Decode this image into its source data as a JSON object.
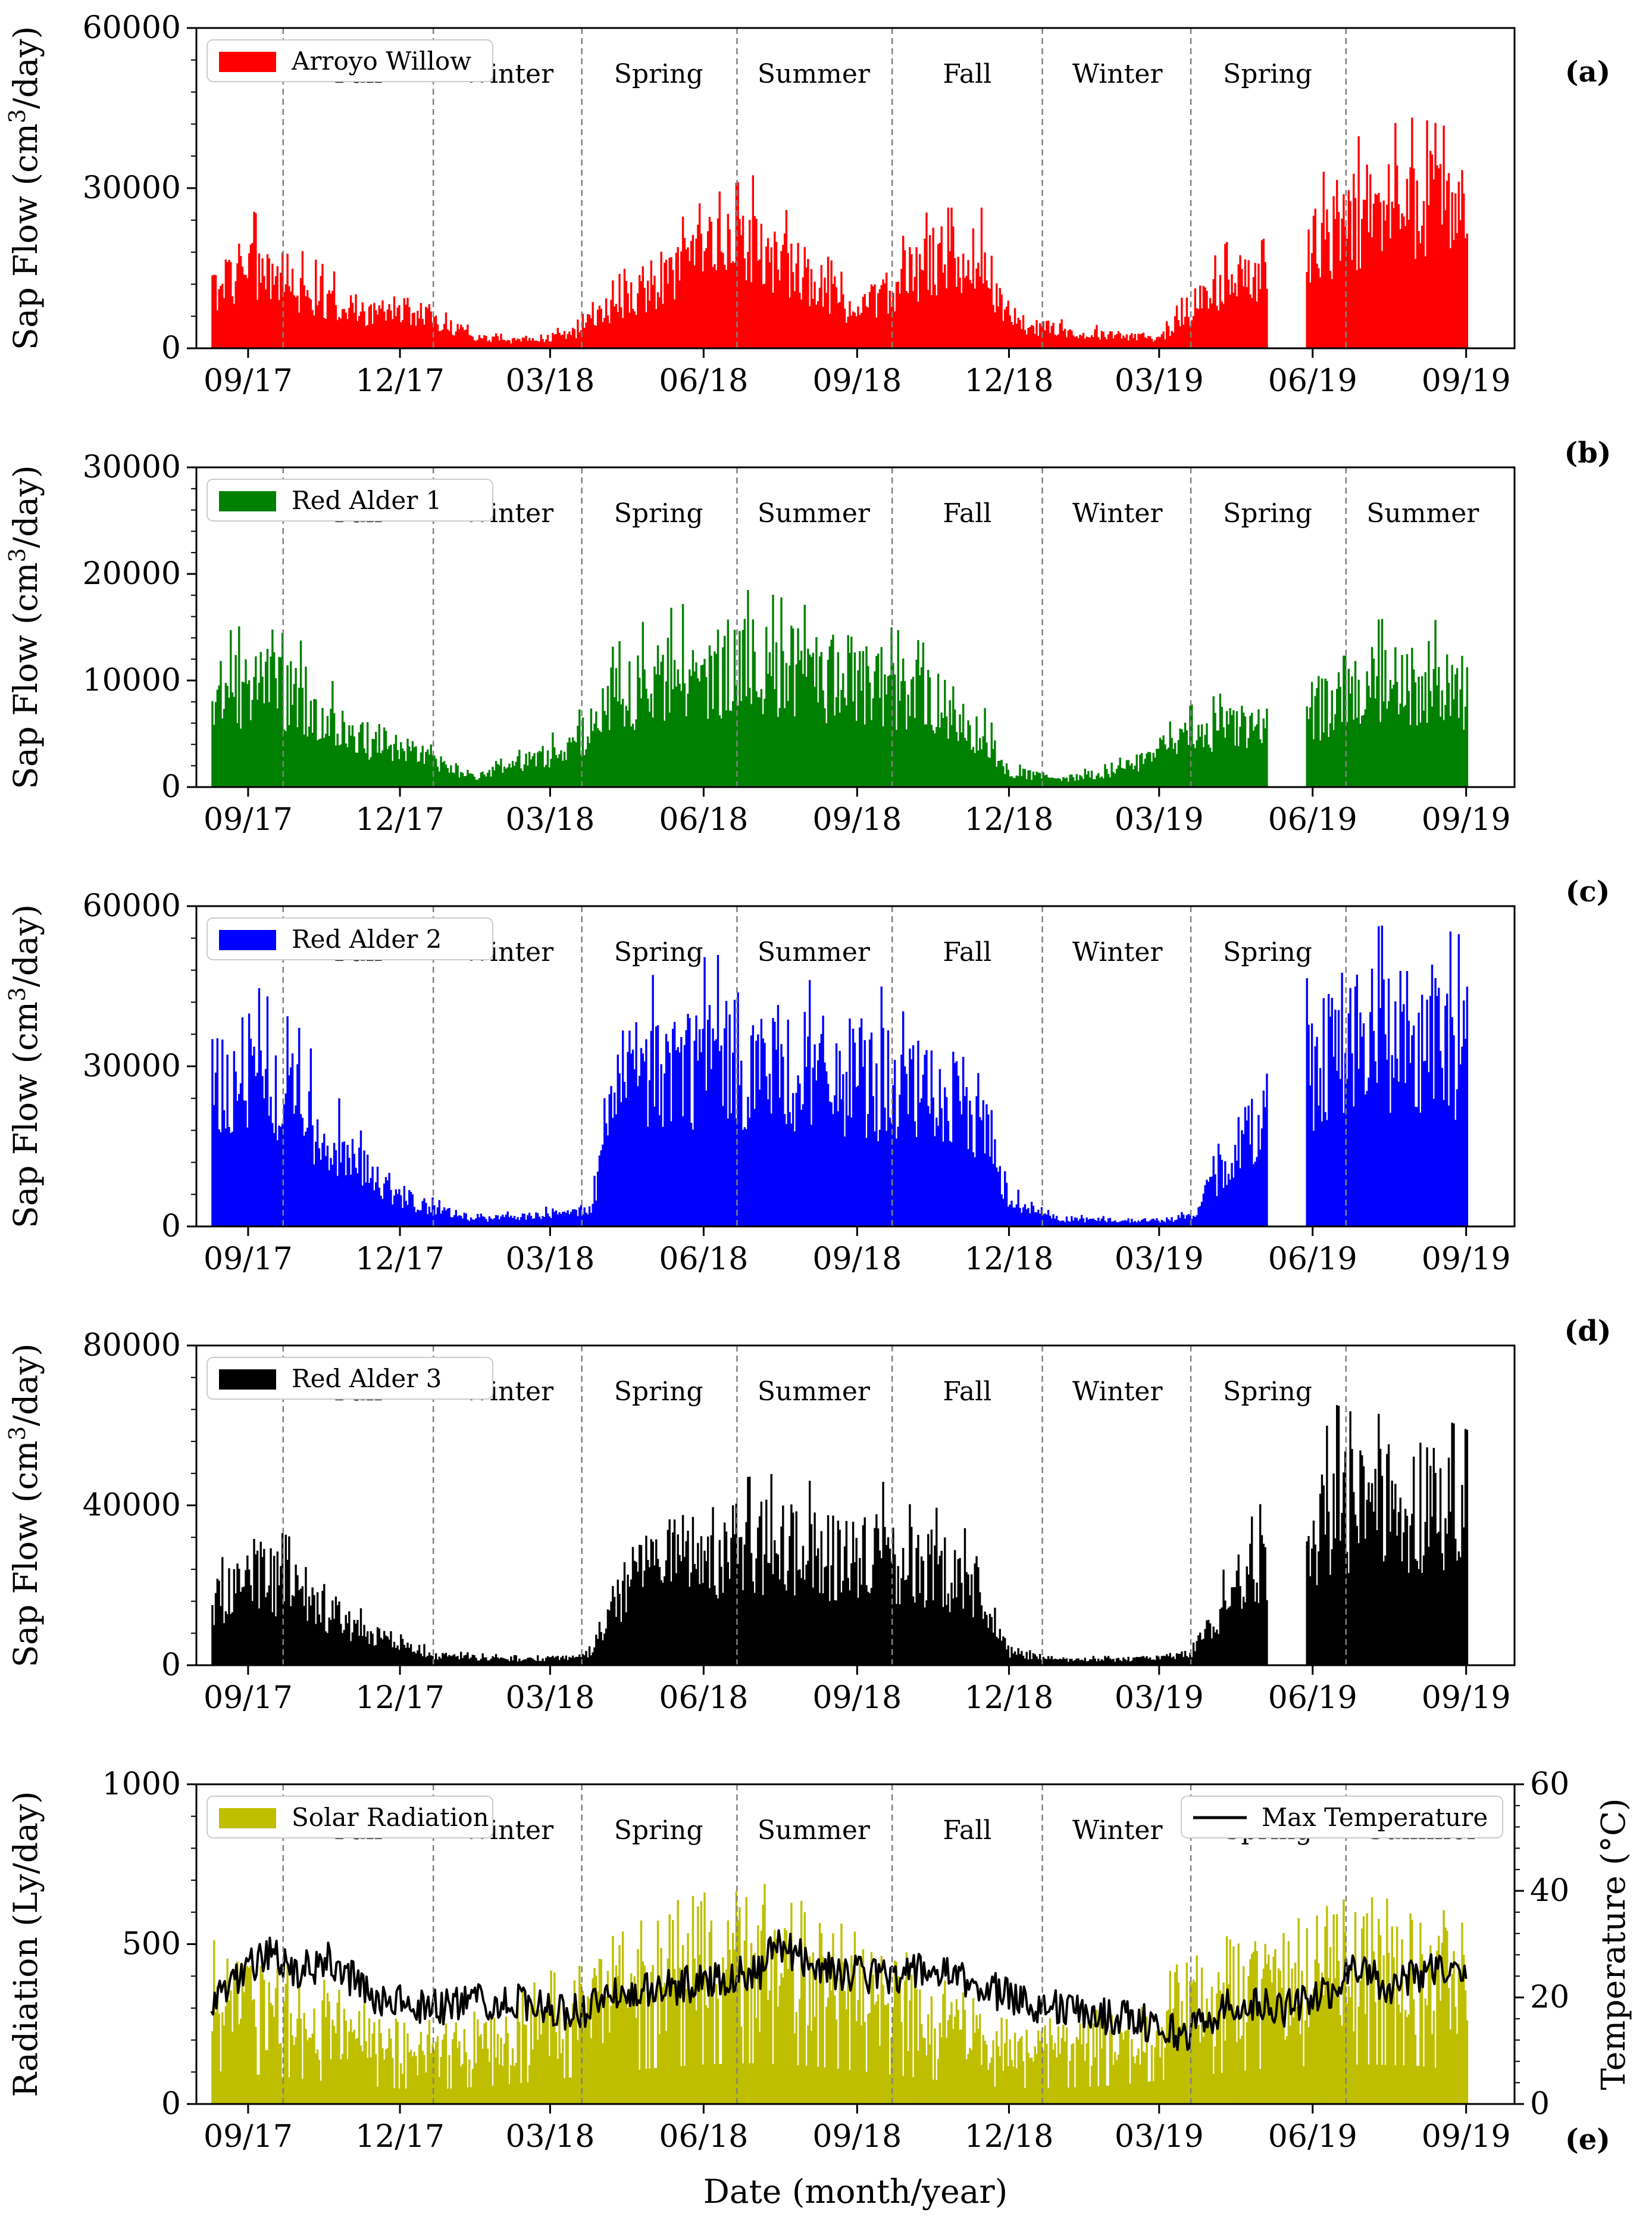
{
  "chart_data": [
    {
      "id": "a",
      "type": "bar",
      "panel_letter": "(a)",
      "legend": "Arroyo Willow",
      "color": "#ff0000",
      "ylabel": "Sap Flow (cm$^3$/day)",
      "ylim": [
        0,
        60000
      ],
      "yticks": [
        "0",
        "30000",
        "60000"
      ],
      "xlim": [
        "2017-08-01",
        "2019-09-30"
      ],
      "xtick_labels": [
        "09/17",
        "12/17",
        "03/18",
        "06/18",
        "09/18",
        "12/18",
        "03/19",
        "06/19",
        "09/19"
      ],
      "seasons": [
        "Fall",
        "Winter",
        "Spring",
        "Summer",
        "Fall",
        "Winter",
        "Spring"
      ],
      "gap": [
        "2019-05-05",
        "2019-05-28"
      ],
      "series": [
        {
          "name": "Arroyo Willow",
          "dates": [
            "2017-08-10",
            "2017-09-01",
            "2017-10-01",
            "2017-11-01",
            "2017-12-01",
            "2017-12-20",
            "2018-01-15",
            "2018-02-15",
            "2018-03-15",
            "2018-04-01",
            "2018-05-01",
            "2018-06-01",
            "2018-06-20",
            "2018-07-01",
            "2018-08-01",
            "2018-09-01",
            "2018-09-25",
            "2018-10-15",
            "2018-11-15",
            "2018-12-01",
            "2019-01-01",
            "2019-02-01",
            "2019-03-01",
            "2019-03-20",
            "2019-04-15",
            "2019-05-05",
            "2019-05-28",
            "2019-06-15",
            "2019-07-01",
            "2019-08-01",
            "2019-09-01"
          ],
          "values": [
            11000,
            17000,
            12000,
            8000,
            6000,
            6500,
            2000,
            1500,
            3000,
            7000,
            13000,
            18000,
            20000,
            21000,
            14000,
            7000,
            13000,
            17000,
            17000,
            5000,
            3500,
            2500,
            2000,
            8000,
            14000,
            16000,
            18000,
            24000,
            26000,
            28000,
            26000
          ]
        }
      ]
    },
    {
      "id": "b",
      "type": "bar",
      "panel_letter": "(b)",
      "legend": "Red Alder 1",
      "color": "#008000",
      "ylabel": "Sap Flow (cm$^3$/day)",
      "ylim": [
        0,
        30000
      ],
      "yticks": [
        "0",
        "10000",
        "20000",
        "30000"
      ],
      "xlim": [
        "2017-08-01",
        "2019-09-30"
      ],
      "xtick_labels": [
        "09/17",
        "12/17",
        "03/18",
        "06/18",
        "09/18",
        "12/18",
        "03/19",
        "06/19",
        "09/19"
      ],
      "seasons": [
        "Fall",
        "Winter",
        "Spring",
        "Summer",
        "Fall",
        "Winter",
        "Spring",
        "Summer"
      ],
      "gap": [
        "2019-05-05",
        "2019-05-28"
      ],
      "series": [
        {
          "name": "Red Alder 1",
          "dates": [
            "2017-08-10",
            "2017-09-01",
            "2017-10-01",
            "2017-11-01",
            "2017-12-01",
            "2017-12-20",
            "2018-01-15",
            "2018-02-15",
            "2018-03-15",
            "2018-04-01",
            "2018-05-01",
            "2018-06-01",
            "2018-07-01",
            "2018-08-01",
            "2018-09-01",
            "2018-09-25",
            "2018-10-15",
            "2018-11-15",
            "2018-12-01",
            "2019-01-01",
            "2019-02-01",
            "2019-03-01",
            "2019-03-20",
            "2019-04-15",
            "2019-05-05",
            "2019-05-28",
            "2019-06-15",
            "2019-07-01",
            "2019-08-01",
            "2019-09-01"
          ],
          "values": [
            9000,
            10000,
            9000,
            5000,
            4000,
            2500,
            1000,
            2500,
            4000,
            8000,
            10500,
            11500,
            12000,
            11000,
            10500,
            9500,
            8500,
            5000,
            1500,
            800,
            1500,
            3500,
            5000,
            6000,
            5500,
            7000,
            9000,
            10000,
            10500,
            9500
          ]
        }
      ]
    },
    {
      "id": "c",
      "type": "bar",
      "panel_letter": "(c)",
      "legend": "Red Alder 2",
      "color": "#0000ff",
      "ylabel": "Sap Flow (cm$^3$/day)",
      "ylim": [
        0,
        60000
      ],
      "yticks": [
        "0",
        "30000",
        "60000"
      ],
      "xlim": [
        "2017-08-01",
        "2019-09-30"
      ],
      "xtick_labels": [
        "09/17",
        "12/17",
        "03/18",
        "06/18",
        "09/18",
        "12/18",
        "03/19",
        "06/19",
        "09/19"
      ],
      "seasons": [
        "Fall",
        "Winter",
        "Spring",
        "Summer",
        "Fall",
        "Winter",
        "Spring"
      ],
      "gap": [
        "2019-05-05",
        "2019-05-28"
      ],
      "series": [
        {
          "name": "Red Alder 2",
          "dates": [
            "2017-08-10",
            "2017-09-01",
            "2017-10-01",
            "2017-11-01",
            "2017-12-01",
            "2017-12-20",
            "2018-01-15",
            "2018-02-15",
            "2018-03-15",
            "2018-03-25",
            "2018-04-10",
            "2018-05-15",
            "2018-06-15",
            "2018-07-15",
            "2018-08-15",
            "2018-09-15",
            "2018-09-25",
            "2018-10-15",
            "2018-11-15",
            "2018-12-01",
            "2019-01-01",
            "2019-02-01",
            "2019-03-01",
            "2019-03-20",
            "2019-04-15",
            "2019-05-05",
            "2019-05-28",
            "2019-06-15",
            "2019-07-01",
            "2019-08-01",
            "2019-09-01"
          ],
          "values": [
            26000,
            30000,
            24000,
            13000,
            6000,
            3500,
            1500,
            2000,
            3000,
            3000,
            28000,
            32000,
            33000,
            31000,
            29000,
            29000,
            26000,
            26000,
            22000,
            5000,
            1500,
            1200,
            1200,
            2000,
            15000,
            24000,
            30000,
            38000,
            36000,
            37000,
            35000
          ]
        }
      ]
    },
    {
      "id": "d",
      "type": "bar",
      "panel_letter": "(d)",
      "legend": "Red Alder 3",
      "color": "#000000",
      "ylabel": "Sap Flow (cm$^3$/day)",
      "ylim": [
        0,
        80000
      ],
      "yticks": [
        "0",
        "40000",
        "80000"
      ],
      "xlim": [
        "2017-08-01",
        "2019-09-30"
      ],
      "xtick_labels": [
        "09/17",
        "12/17",
        "03/18",
        "06/18",
        "09/18",
        "12/18",
        "03/19",
        "06/19",
        "09/19"
      ],
      "seasons": [
        "Fall",
        "Winter",
        "Spring",
        "Summer",
        "Fall",
        "Winter",
        "Spring"
      ],
      "gap": [
        "2019-05-05",
        "2019-05-28"
      ],
      "series": [
        {
          "name": "Red Alder 3",
          "dates": [
            "2017-08-10",
            "2017-09-01",
            "2017-10-01",
            "2017-11-01",
            "2017-12-01",
            "2017-12-20",
            "2018-01-15",
            "2018-02-15",
            "2018-03-15",
            "2018-03-25",
            "2018-04-15",
            "2018-05-15",
            "2018-06-15",
            "2018-07-15",
            "2018-08-15",
            "2018-09-15",
            "2018-09-25",
            "2018-10-15",
            "2018-11-15",
            "2018-12-01",
            "2019-01-01",
            "2019-02-01",
            "2019-03-01",
            "2019-03-20",
            "2019-04-15",
            "2019-05-05",
            "2019-05-28",
            "2019-06-15",
            "2019-07-01",
            "2019-08-01",
            "2019-09-01"
          ],
          "values": [
            15000,
            24000,
            20000,
            10000,
            6000,
            2500,
            2000,
            1500,
            2000,
            4000,
            22000,
            28000,
            30000,
            31000,
            29000,
            30000,
            26000,
            26000,
            20000,
            3000,
            1500,
            1500,
            2000,
            3000,
            20000,
            28000,
            32000,
            42000,
            40000,
            42000,
            38000
          ]
        }
      ]
    },
    {
      "id": "e",
      "type": "bar",
      "panel_letter": "(e)",
      "legend": "Solar Radiation",
      "legend2": "Max Temperature",
      "color": "#bfbf00",
      "color2": "#000000",
      "ylabel": "Radiation (Ly/day)",
      "ylabel2": "Temperature (°C)",
      "xlabel": "Date (month/year)",
      "ylim": [
        0,
        1000
      ],
      "yticks": [
        "0",
        "500",
        "1000"
      ],
      "ylim2": [
        0,
        60
      ],
      "yticks2": [
        "0",
        "20",
        "40",
        "60"
      ],
      "xlim": [
        "2017-08-01",
        "2019-09-30"
      ],
      "xtick_labels": [
        "09/17",
        "12/17",
        "03/18",
        "06/18",
        "09/18",
        "12/18",
        "03/19",
        "06/19",
        "09/19"
      ],
      "seasons": [
        "Fall",
        "Winter",
        "Spring",
        "Summer",
        "Fall",
        "Winter",
        "Spring",
        "Summer"
      ],
      "series": [
        {
          "name": "Solar Radiation",
          "dates": [
            "2017-08-10",
            "2017-09-01",
            "2017-10-01",
            "2017-11-01",
            "2017-12-01",
            "2018-01-01",
            "2018-02-01",
            "2018-03-01",
            "2018-04-01",
            "2018-05-01",
            "2018-06-01",
            "2018-07-01",
            "2018-08-01",
            "2018-09-01",
            "2018-10-01",
            "2018-11-01",
            "2018-12-01",
            "2019-01-01",
            "2019-02-01",
            "2019-03-01",
            "2019-04-01",
            "2019-05-01",
            "2019-06-01",
            "2019-07-01",
            "2019-08-01",
            "2019-09-01"
          ],
          "values": [
            520,
            470,
            400,
            310,
            240,
            240,
            300,
            380,
            470,
            560,
            620,
            640,
            600,
            520,
            430,
            330,
            250,
            250,
            290,
            370,
            470,
            550,
            600,
            620,
            600,
            520
          ]
        },
        {
          "name": "Max Temperature",
          "dates": [
            "2017-08-10",
            "2017-09-01",
            "2017-09-15",
            "2017-10-01",
            "2017-10-20",
            "2017-11-15",
            "2017-12-15",
            "2018-01-15",
            "2018-02-15",
            "2018-03-15",
            "2018-04-15",
            "2018-05-15",
            "2018-06-15",
            "2018-07-05",
            "2018-07-15",
            "2018-08-15",
            "2018-09-15",
            "2018-10-15",
            "2018-11-15",
            "2018-12-15",
            "2019-01-15",
            "2019-02-15",
            "2019-03-15",
            "2019-04-15",
            "2019-05-15",
            "2019-06-15",
            "2019-06-25",
            "2019-07-15",
            "2019-08-15",
            "2019-09-01"
          ],
          "values": [
            20,
            26,
            28,
            25,
            27,
            20,
            18,
            19,
            19,
            17,
            21,
            22,
            24,
            25,
            30,
            25,
            24,
            25,
            22,
            19,
            17,
            16,
            13,
            19,
            18,
            21,
            27,
            22,
            26,
            23
          ]
        }
      ]
    }
  ]
}
